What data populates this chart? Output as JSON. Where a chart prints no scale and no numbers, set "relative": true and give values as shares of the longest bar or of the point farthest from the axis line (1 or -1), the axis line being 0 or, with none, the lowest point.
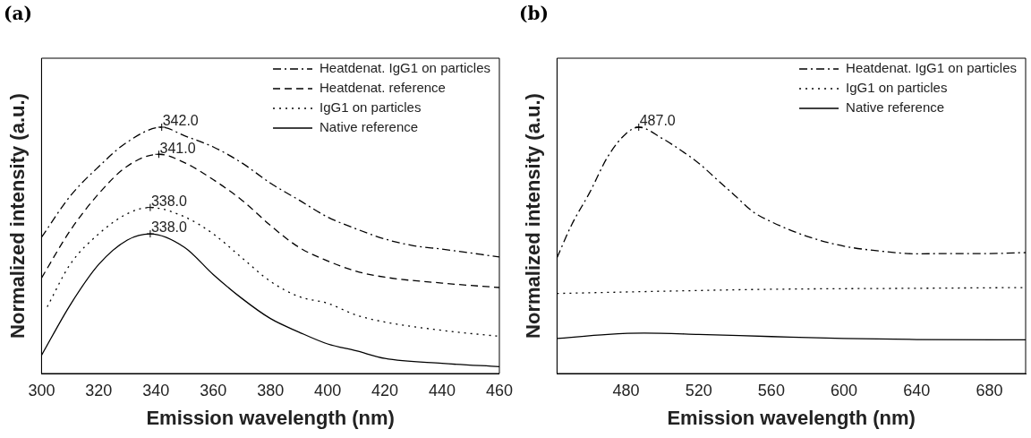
{
  "chart_data": [
    {
      "type": "line",
      "title": "(a)",
      "xlabel": "Emission wavelength (nm)",
      "ylabel": "Normalized intensity (a.u.)",
      "relative": true,
      "xlim": [
        300,
        460
      ],
      "xticks": [
        300,
        320,
        340,
        360,
        380,
        400,
        420,
        440,
        460
      ],
      "legend": "top right",
      "marker": "none",
      "grid": false,
      "series": [
        {
          "name": "Heatdenat. IgG1 on particles",
          "color": "#000000",
          "line_style": "dashdot",
          "x": [
            300,
            310,
            320,
            330,
            342,
            350,
            360,
            370,
            380,
            390,
            400,
            410,
            420,
            430,
            440,
            460
          ],
          "values": [
            0.553,
            0.72,
            0.84,
            0.94,
            1.0,
            0.965,
            0.92,
            0.855,
            0.773,
            0.704,
            0.635,
            0.587,
            0.546,
            0.519,
            0.505,
            0.473
          ]
        },
        {
          "name": "Heatdenat. reference",
          "color": "#000000",
          "line_style": "dashed",
          "x": [
            300,
            310,
            320,
            330,
            341,
            350,
            360,
            370,
            380,
            390,
            400,
            410,
            420,
            440,
            460
          ],
          "values": [
            0.388,
            0.58,
            0.73,
            0.842,
            0.89,
            0.856,
            0.787,
            0.704,
            0.601,
            0.512,
            0.457,
            0.415,
            0.391,
            0.367,
            0.349
          ]
        },
        {
          "name": "IgG1 on particles",
          "color": "#000000",
          "line_style": "dotted",
          "x": [
            302,
            310,
            320,
            330,
            338,
            350,
            360,
            370,
            380,
            390,
            400,
            410,
            420,
            440,
            460
          ],
          "values": [
            0.271,
            0.443,
            0.567,
            0.649,
            0.674,
            0.636,
            0.567,
            0.47,
            0.374,
            0.312,
            0.285,
            0.237,
            0.209,
            0.175,
            0.151
          ]
        },
        {
          "name": "Native reference",
          "color": "#000000",
          "line_style": "solid",
          "x": [
            300,
            310,
            320,
            330,
            338,
            350,
            360,
            370,
            380,
            390,
            400,
            410,
            420,
            440,
            460
          ],
          "values": [
            0.074,
            0.278,
            0.443,
            0.542,
            0.567,
            0.512,
            0.402,
            0.305,
            0.223,
            0.168,
            0.12,
            0.092,
            0.061,
            0.041,
            0.028
          ]
        }
      ],
      "annotations": [
        {
          "text": "342.0",
          "x": 342,
          "y": 1.0
        },
        {
          "text": "341.0",
          "x": 341,
          "y": 0.89
        },
        {
          "text": "338.0",
          "x": 338,
          "y": 0.674
        },
        {
          "text": "338.0",
          "x": 338,
          "y": 0.567
        }
      ]
    },
    {
      "type": "line",
      "title": "(b)",
      "xlabel": "Emission wavelength (nm)",
      "ylabel": "Normalized intensity (a.u.)",
      "relative": true,
      "xlim": [
        442,
        700
      ],
      "xticks": [
        480,
        520,
        560,
        600,
        640,
        680
      ],
      "legend": "top right",
      "marker": "none",
      "grid": false,
      "series": [
        {
          "name": "Heatdenat. IgG1 on particles",
          "color": "#000000",
          "line_style": "dashdot",
          "x": [
            442,
            450,
            460,
            470,
            480,
            487,
            500,
            510,
            520,
            530,
            540,
            550,
            560,
            580,
            600,
            620,
            640,
            660,
            680,
            700
          ],
          "values": [
            0.47,
            0.603,
            0.735,
            0.881,
            0.974,
            1.0,
            0.954,
            0.907,
            0.854,
            0.788,
            0.722,
            0.656,
            0.616,
            0.556,
            0.517,
            0.497,
            0.486,
            0.487,
            0.487,
            0.491
          ]
        },
        {
          "name": "IgG1 on particles",
          "color": "#000000",
          "line_style": "dotted",
          "x": [
            442,
            500,
            560,
            640,
            700
          ],
          "values": [
            0.325,
            0.334,
            0.342,
            0.346,
            0.349
          ]
        },
        {
          "name": "Native reference",
          "color": "#000000",
          "line_style": "solid",
          "x": [
            442,
            470,
            490,
            520,
            560,
            600,
            640,
            700
          ],
          "values": [
            0.142,
            0.159,
            0.164,
            0.159,
            0.15,
            0.142,
            0.138,
            0.137
          ]
        }
      ],
      "annotations": [
        {
          "text": "487.0",
          "x": 487,
          "y": 1.0
        }
      ]
    }
  ]
}
